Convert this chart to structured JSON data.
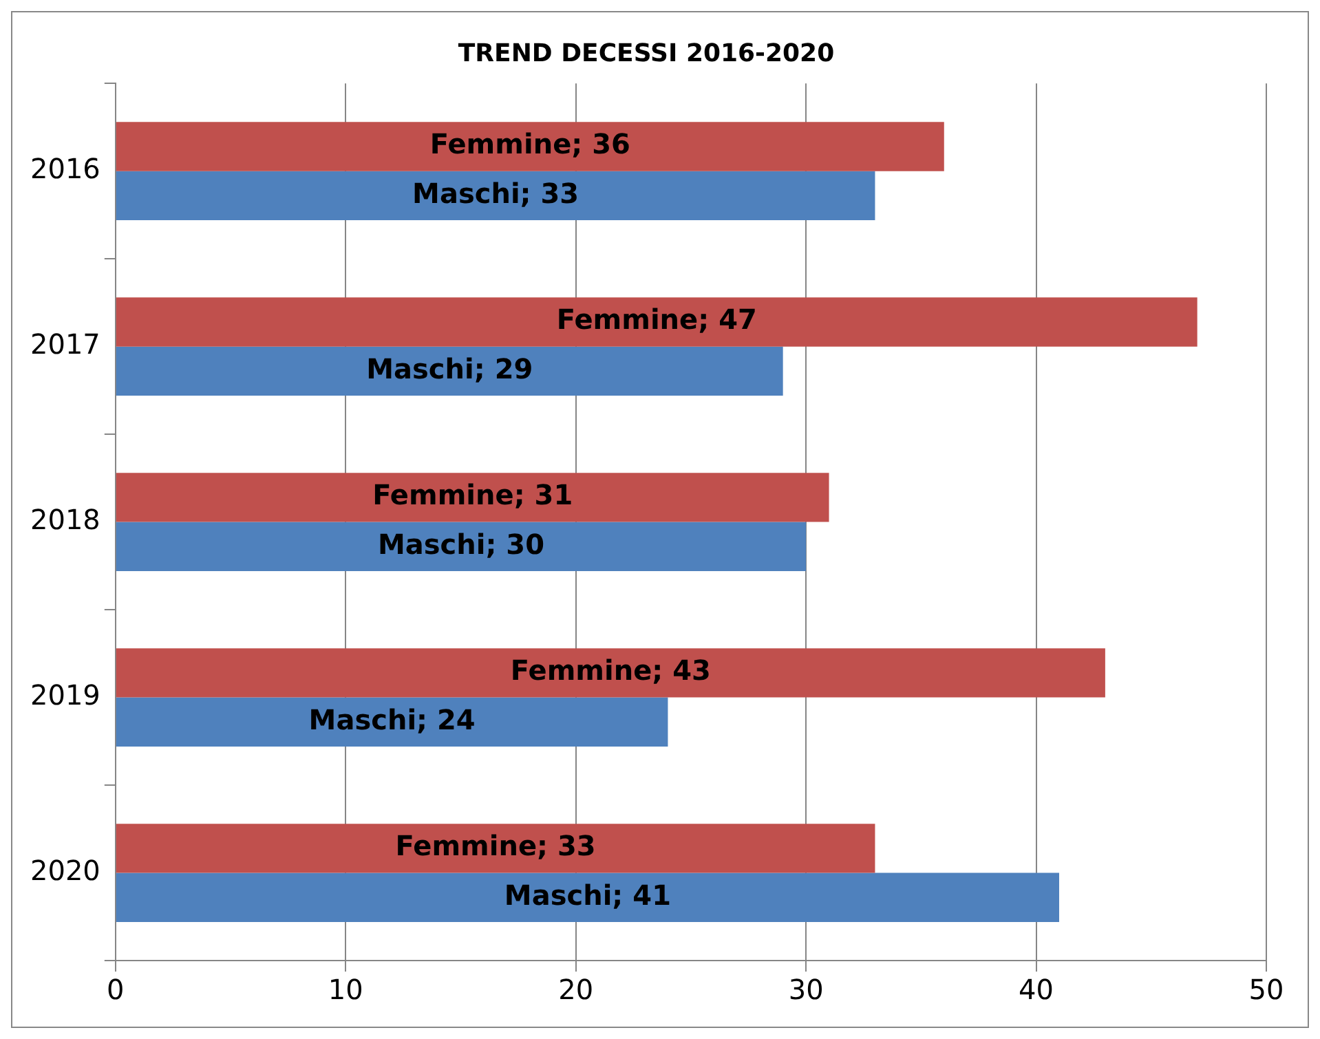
{
  "chart_data": {
    "type": "bar",
    "orientation": "horizontal",
    "title": "TREND DECESSI 2016-2020",
    "categories": [
      "2016",
      "2017",
      "2018",
      "2019",
      "2020"
    ],
    "series": [
      {
        "color": "#c0504d",
        "values": [
          36,
          47,
          31,
          43,
          33
        ],
        "value_labels": [
          "Femmine; 36",
          "Femmine; 47",
          "Femmine; 31",
          "Femmine; 43",
          "Femmine; 33"
        ]
      },
      {
        "color": "#4f81bd",
        "values": [
          33,
          29,
          30,
          24,
          41
        ],
        "value_labels": [
          "Maschi; 33",
          "Maschi; 29",
          "Maschi; 30",
          "Maschi; 24",
          "Maschi; 41"
        ]
      }
    ],
    "xlim": [
      0,
      50
    ],
    "xticks": [
      0,
      10,
      20,
      30,
      40,
      50
    ],
    "grid": "x",
    "legend": false
  }
}
